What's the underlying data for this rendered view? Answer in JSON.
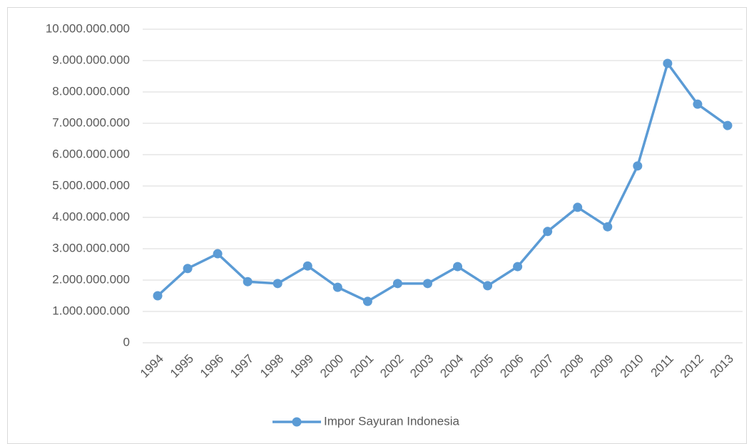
{
  "chart_data": {
    "type": "line",
    "categories": [
      "1994",
      "1995",
      "1996",
      "1997",
      "1998",
      "1999",
      "2000",
      "2001",
      "2002",
      "2003",
      "2004",
      "2005",
      "2006",
      "2007",
      "2008",
      "2009",
      "2010",
      "2011",
      "2012",
      "2013"
    ],
    "series": [
      {
        "name": "Impor Sayuran Indonesia",
        "color": "#5b9bd5",
        "values": [
          1500000000,
          2370000000,
          2840000000,
          1950000000,
          1890000000,
          2450000000,
          1770000000,
          1320000000,
          1890000000,
          1890000000,
          2430000000,
          1820000000,
          2430000000,
          3550000000,
          4320000000,
          3700000000,
          5640000000,
          8910000000,
          7610000000,
          6930000000
        ]
      }
    ],
    "ylim": [
      0,
      10000000000
    ],
    "yticks": [
      0,
      {
        "value": 1000000000,
        "label": "1.000.000.000"
      },
      {
        "value": 2000000000,
        "label": "2.000.000.000"
      },
      {
        "value": 3000000000,
        "label": "3.000.000.000"
      },
      {
        "value": 4000000000,
        "label": "4.000.000.000"
      },
      {
        "value": 5000000000,
        "label": "5.000.000.000"
      },
      {
        "value": 6000000000,
        "label": "6.000.000.000"
      },
      {
        "value": 7000000000,
        "label": "7.000.000.000"
      },
      {
        "value": 8000000000,
        "label": "8.000.000.000"
      },
      {
        "value": 9000000000,
        "label": "9.000.000.000"
      },
      {
        "value": 10000000000,
        "label": "10.000.000.000"
      }
    ],
    "grid": true,
    "legend": "bottom"
  }
}
